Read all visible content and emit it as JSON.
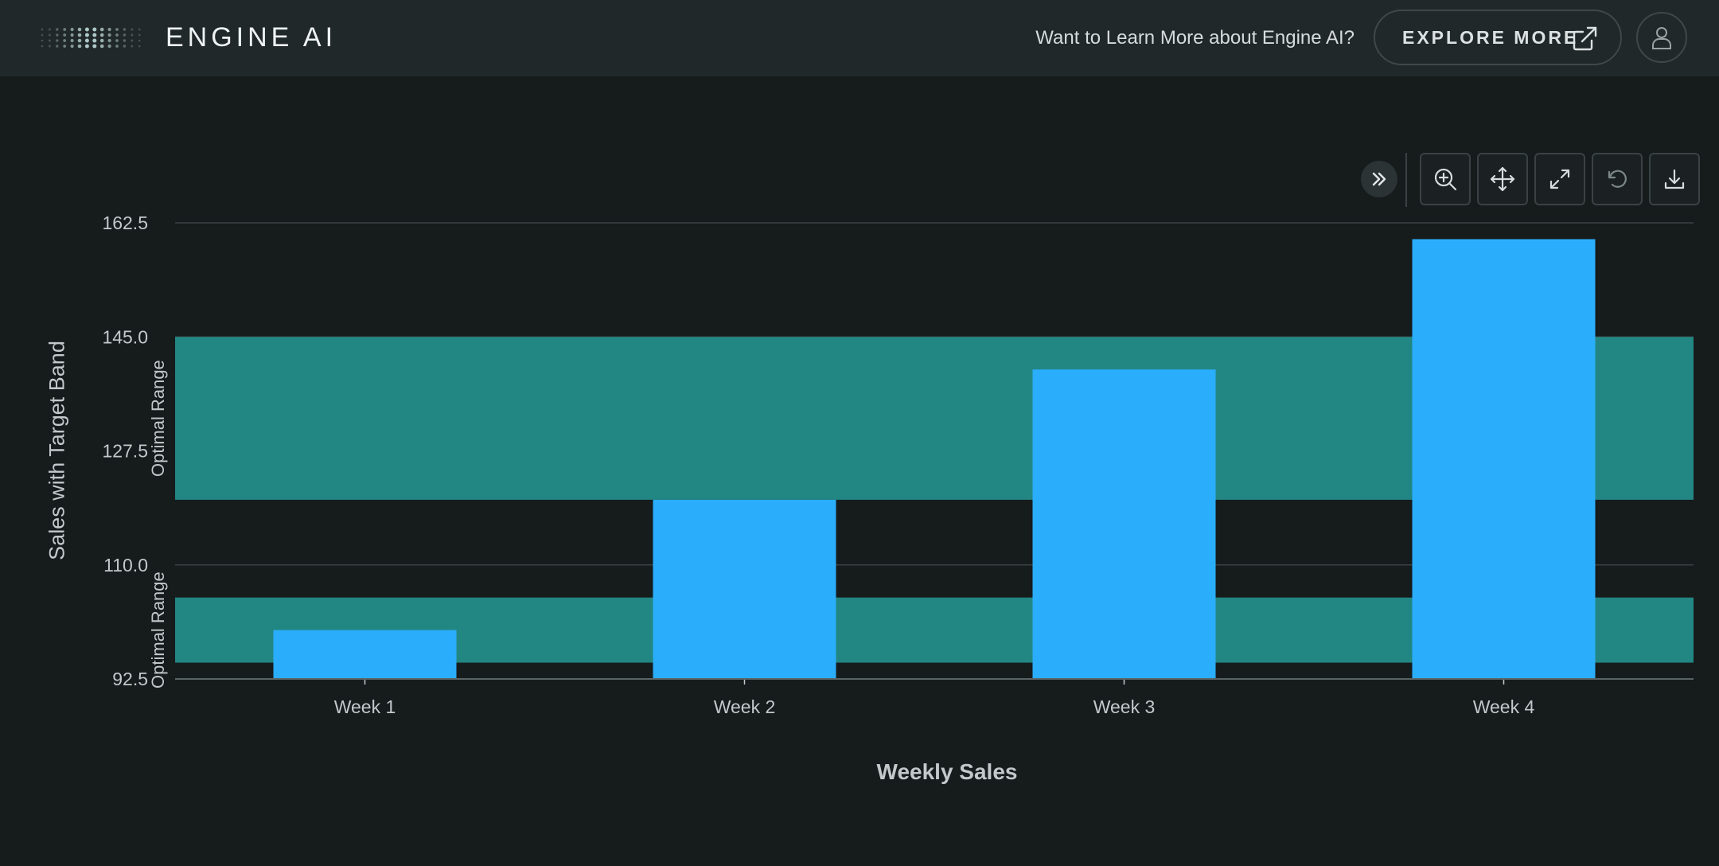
{
  "header": {
    "brand": "ENGINE AI",
    "promo_text": "Want to Learn More about Engine AI?",
    "explore_label": "EXPLORE MORE"
  },
  "toolbar": {
    "icons": [
      "chevrons-right-icon",
      "zoom-in-icon",
      "pan-icon",
      "expand-icon",
      "reset-icon",
      "download-icon"
    ]
  },
  "colors": {
    "background": "#161b1c",
    "header": "#212829",
    "bar": "#2aaefc",
    "band": "#228683",
    "grid": "#3a4243"
  },
  "chart_data": {
    "type": "bar",
    "xlabel": "Weekly Sales",
    "ylabel": "Sales with Target Band",
    "categories": [
      "Week 1",
      "Week 2",
      "Week 3",
      "Week 4"
    ],
    "series": [
      {
        "values": [
          100,
          120,
          140,
          160
        ]
      }
    ],
    "ylim": [
      92.5,
      162.5
    ],
    "yticks": [
      "162.5",
      "145.0",
      "127.5",
      "110.0",
      "92.5"
    ],
    "ytick_values": [
      162.5,
      145.0,
      127.5,
      110.0,
      92.5
    ],
    "bands": [
      {
        "label": "Optimal Range",
        "from": 120,
        "to": 145
      },
      {
        "label": "Optimal Range",
        "from": 95,
        "to": 105
      }
    ],
    "grid": true
  }
}
